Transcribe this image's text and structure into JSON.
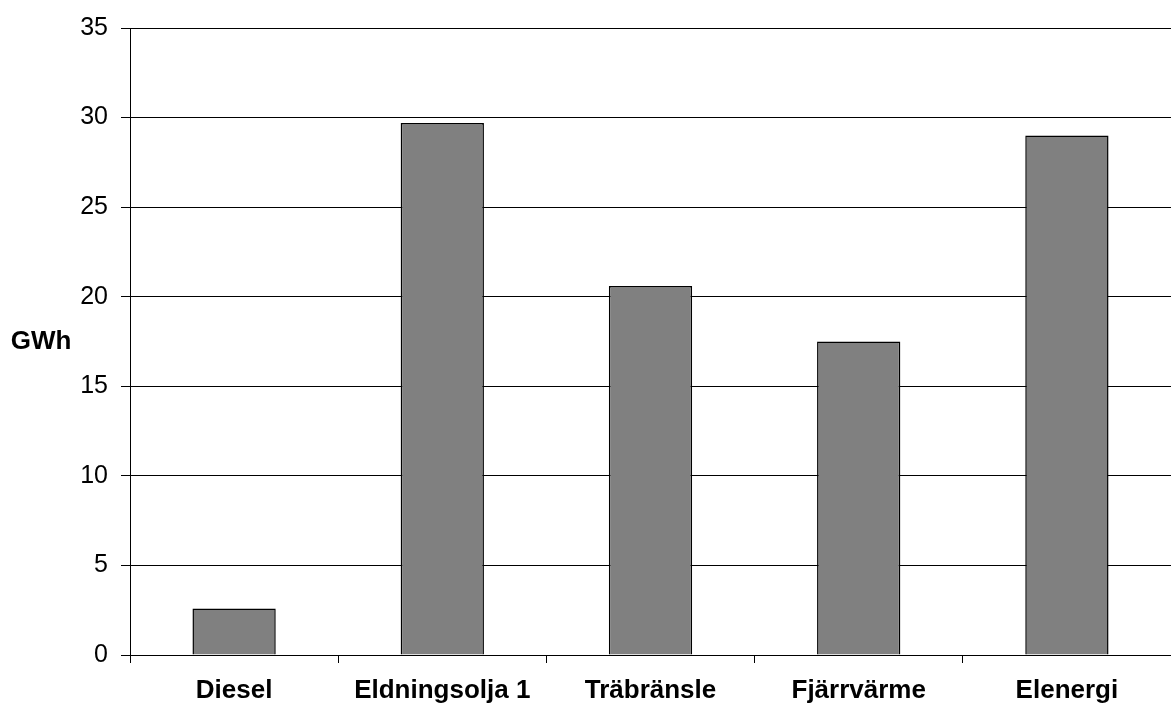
{
  "chart_data": {
    "type": "bar",
    "ylabel": "GWh",
    "categories": [
      "Diesel",
      "Eldningsolja 1",
      "Träbränsle",
      "Fjärrvärme",
      "Elenergi"
    ],
    "values": [
      2.6,
      29.7,
      20.6,
      17.5,
      29.0
    ],
    "color": "#808080",
    "ylim": [
      0,
      35
    ],
    "yticks": [
      0,
      5,
      10,
      15,
      20,
      25,
      30,
      35
    ],
    "grid": "y"
  }
}
